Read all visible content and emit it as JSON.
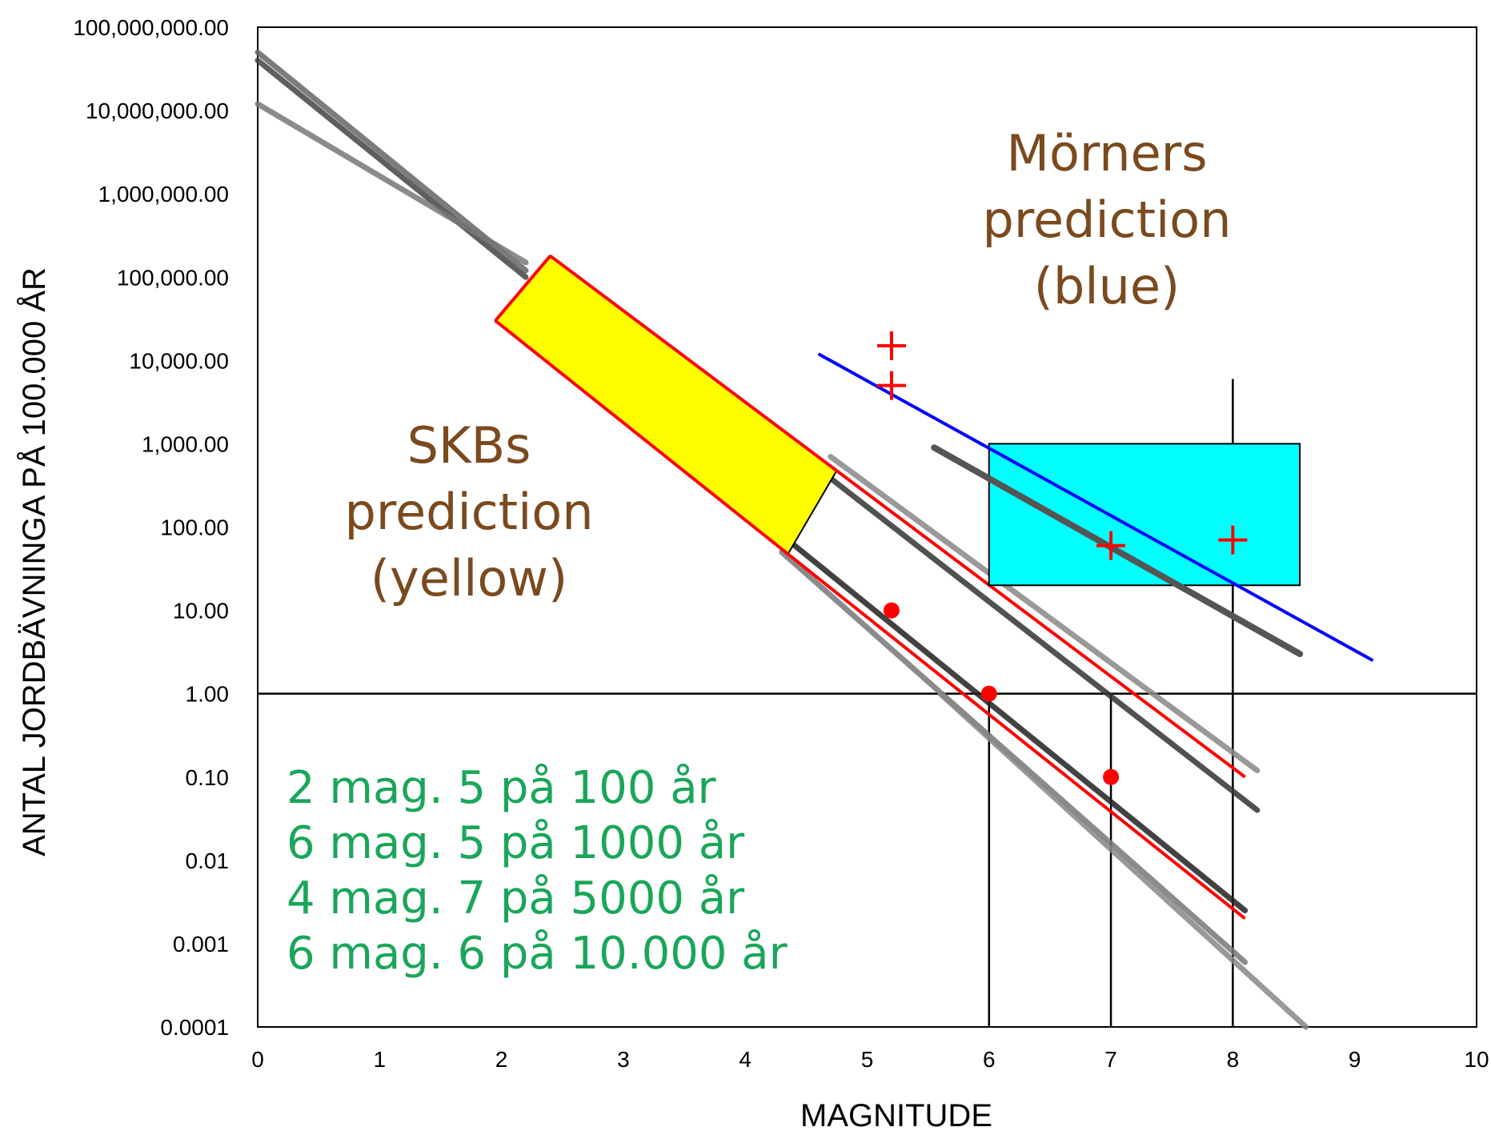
{
  "chart_data": {
    "type": "line",
    "xlabel": "MAGNITUDE",
    "ylabel": "ANTAL JORDBÄVNINGA PÅ 100.000 ÅR",
    "xlim": [
      0,
      10
    ],
    "ylim_log10": [
      -4,
      8
    ],
    "y_scale": "log",
    "grid": false,
    "x_ticks": [
      "0",
      "1",
      "2",
      "3",
      "4",
      "5",
      "6",
      "7",
      "8",
      "9",
      "10"
    ],
    "y_ticks": [
      {
        "value": 100000000,
        "label": "100,000,000.00"
      },
      {
        "value": 10000000,
        "label": "10,000,000.00"
      },
      {
        "value": 1000000,
        "label": "1,000,000.00"
      },
      {
        "value": 100000,
        "label": "100,000.00"
      },
      {
        "value": 10000,
        "label": "10,000.00"
      },
      {
        "value": 1000,
        "label": "1,000.00"
      },
      {
        "value": 100,
        "label": "100.00"
      },
      {
        "value": 10,
        "label": "10.00"
      },
      {
        "value": 1,
        "label": "1.00"
      },
      {
        "value": 0.1,
        "label": "0.10"
      },
      {
        "value": 0.01,
        "label": "0.01"
      },
      {
        "value": 0.001,
        "label": "0.001"
      },
      {
        "value": 0.0001,
        "label": "0.0001"
      }
    ],
    "reference_lines": [
      {
        "orientation": "horizontal",
        "y": 1,
        "color": "#000000"
      },
      {
        "orientation": "vertical",
        "x": 6,
        "y_range": [
          0.0001,
          1
        ],
        "color": "#000000"
      },
      {
        "orientation": "vertical",
        "x": 7,
        "y_range": [
          0.0001,
          1
        ],
        "color": "#000000"
      },
      {
        "orientation": "vertical",
        "x": 8,
        "y_range": [
          0.0001,
          6000
        ],
        "color": "#000000"
      }
    ],
    "gray_lines": [
      {
        "x": [
          0,
          2.2
        ],
        "y": [
          40000000,
          100000
        ],
        "color": "#444444"
      },
      {
        "x": [
          0,
          2.2
        ],
        "y": [
          50000000,
          120000
        ],
        "color": "#666666"
      },
      {
        "x": [
          0,
          2.2
        ],
        "y": [
          12000000,
          150000
        ],
        "color": "#777777"
      },
      {
        "x": [
          4.3,
          8.1
        ],
        "y": [
          80,
          0.0025
        ],
        "color": "#222222"
      },
      {
        "x": [
          4.3,
          8.1
        ],
        "y": [
          50,
          0.0006
        ],
        "color": "#777777"
      },
      {
        "x": [
          4.6,
          8.2
        ],
        "y": [
          500,
          0.04
        ],
        "color": "#333333"
      },
      {
        "x": [
          4.7,
          8.2
        ],
        "y": [
          700,
          0.12
        ],
        "color": "#888888"
      },
      {
        "x": [
          5.6,
          8.6
        ],
        "y": [
          1.0,
          0.0001
        ],
        "color": "#888888"
      }
    ],
    "skb_prediction_band": {
      "name": "SKBs prediction (yellow)",
      "fill": "#ffff00",
      "edge": "#ff0000",
      "upper_line": {
        "x": [
          2.4,
          8.1
        ],
        "y": [
          180000,
          0.1
        ]
      },
      "lower_line": {
        "x": [
          1.95,
          8.1
        ],
        "y": [
          30000,
          0.002
        ]
      },
      "filled_x_range_upper": [
        2.4,
        4.75
      ],
      "filled_x_range_lower": [
        1.95,
        4.35
      ]
    },
    "morner_prediction_line": {
      "name": "Mörners prediction (blue)",
      "color": "#0000ff",
      "x": [
        4.6,
        9.15
      ],
      "y": [
        12000,
        2.5
      ]
    },
    "morner_dark_line": {
      "color": "#555555",
      "x": [
        5.55,
        8.55
      ],
      "y": [
        900,
        3
      ]
    },
    "cyan_box": {
      "fill": "#00ffff",
      "edge": "#000000",
      "x": [
        6.0,
        8.55
      ],
      "y": [
        20,
        1000
      ]
    },
    "red_dots": {
      "x": [
        5.2,
        6.0,
        7.0
      ],
      "y": [
        10,
        1,
        0.1
      ],
      "color": "#ff0000"
    },
    "red_crosses": {
      "x": [
        5.2,
        5.2,
        7.0,
        8.0
      ],
      "y": [
        15000,
        5000,
        60,
        70
      ],
      "color": "#ff0000"
    }
  },
  "annotations": {
    "skb_lines": [
      "SKBs",
      "prediction",
      "(yellow)"
    ],
    "morner_lines": [
      "Mörners",
      "prediction",
      "(blue)"
    ],
    "green_lines": [
      "2 mag. 5 på 100 år",
      "6 mag. 5 på 1000 år",
      "4 mag. 7 på 5000 år",
      "6 mag. 6 på 10.000 år"
    ]
  }
}
